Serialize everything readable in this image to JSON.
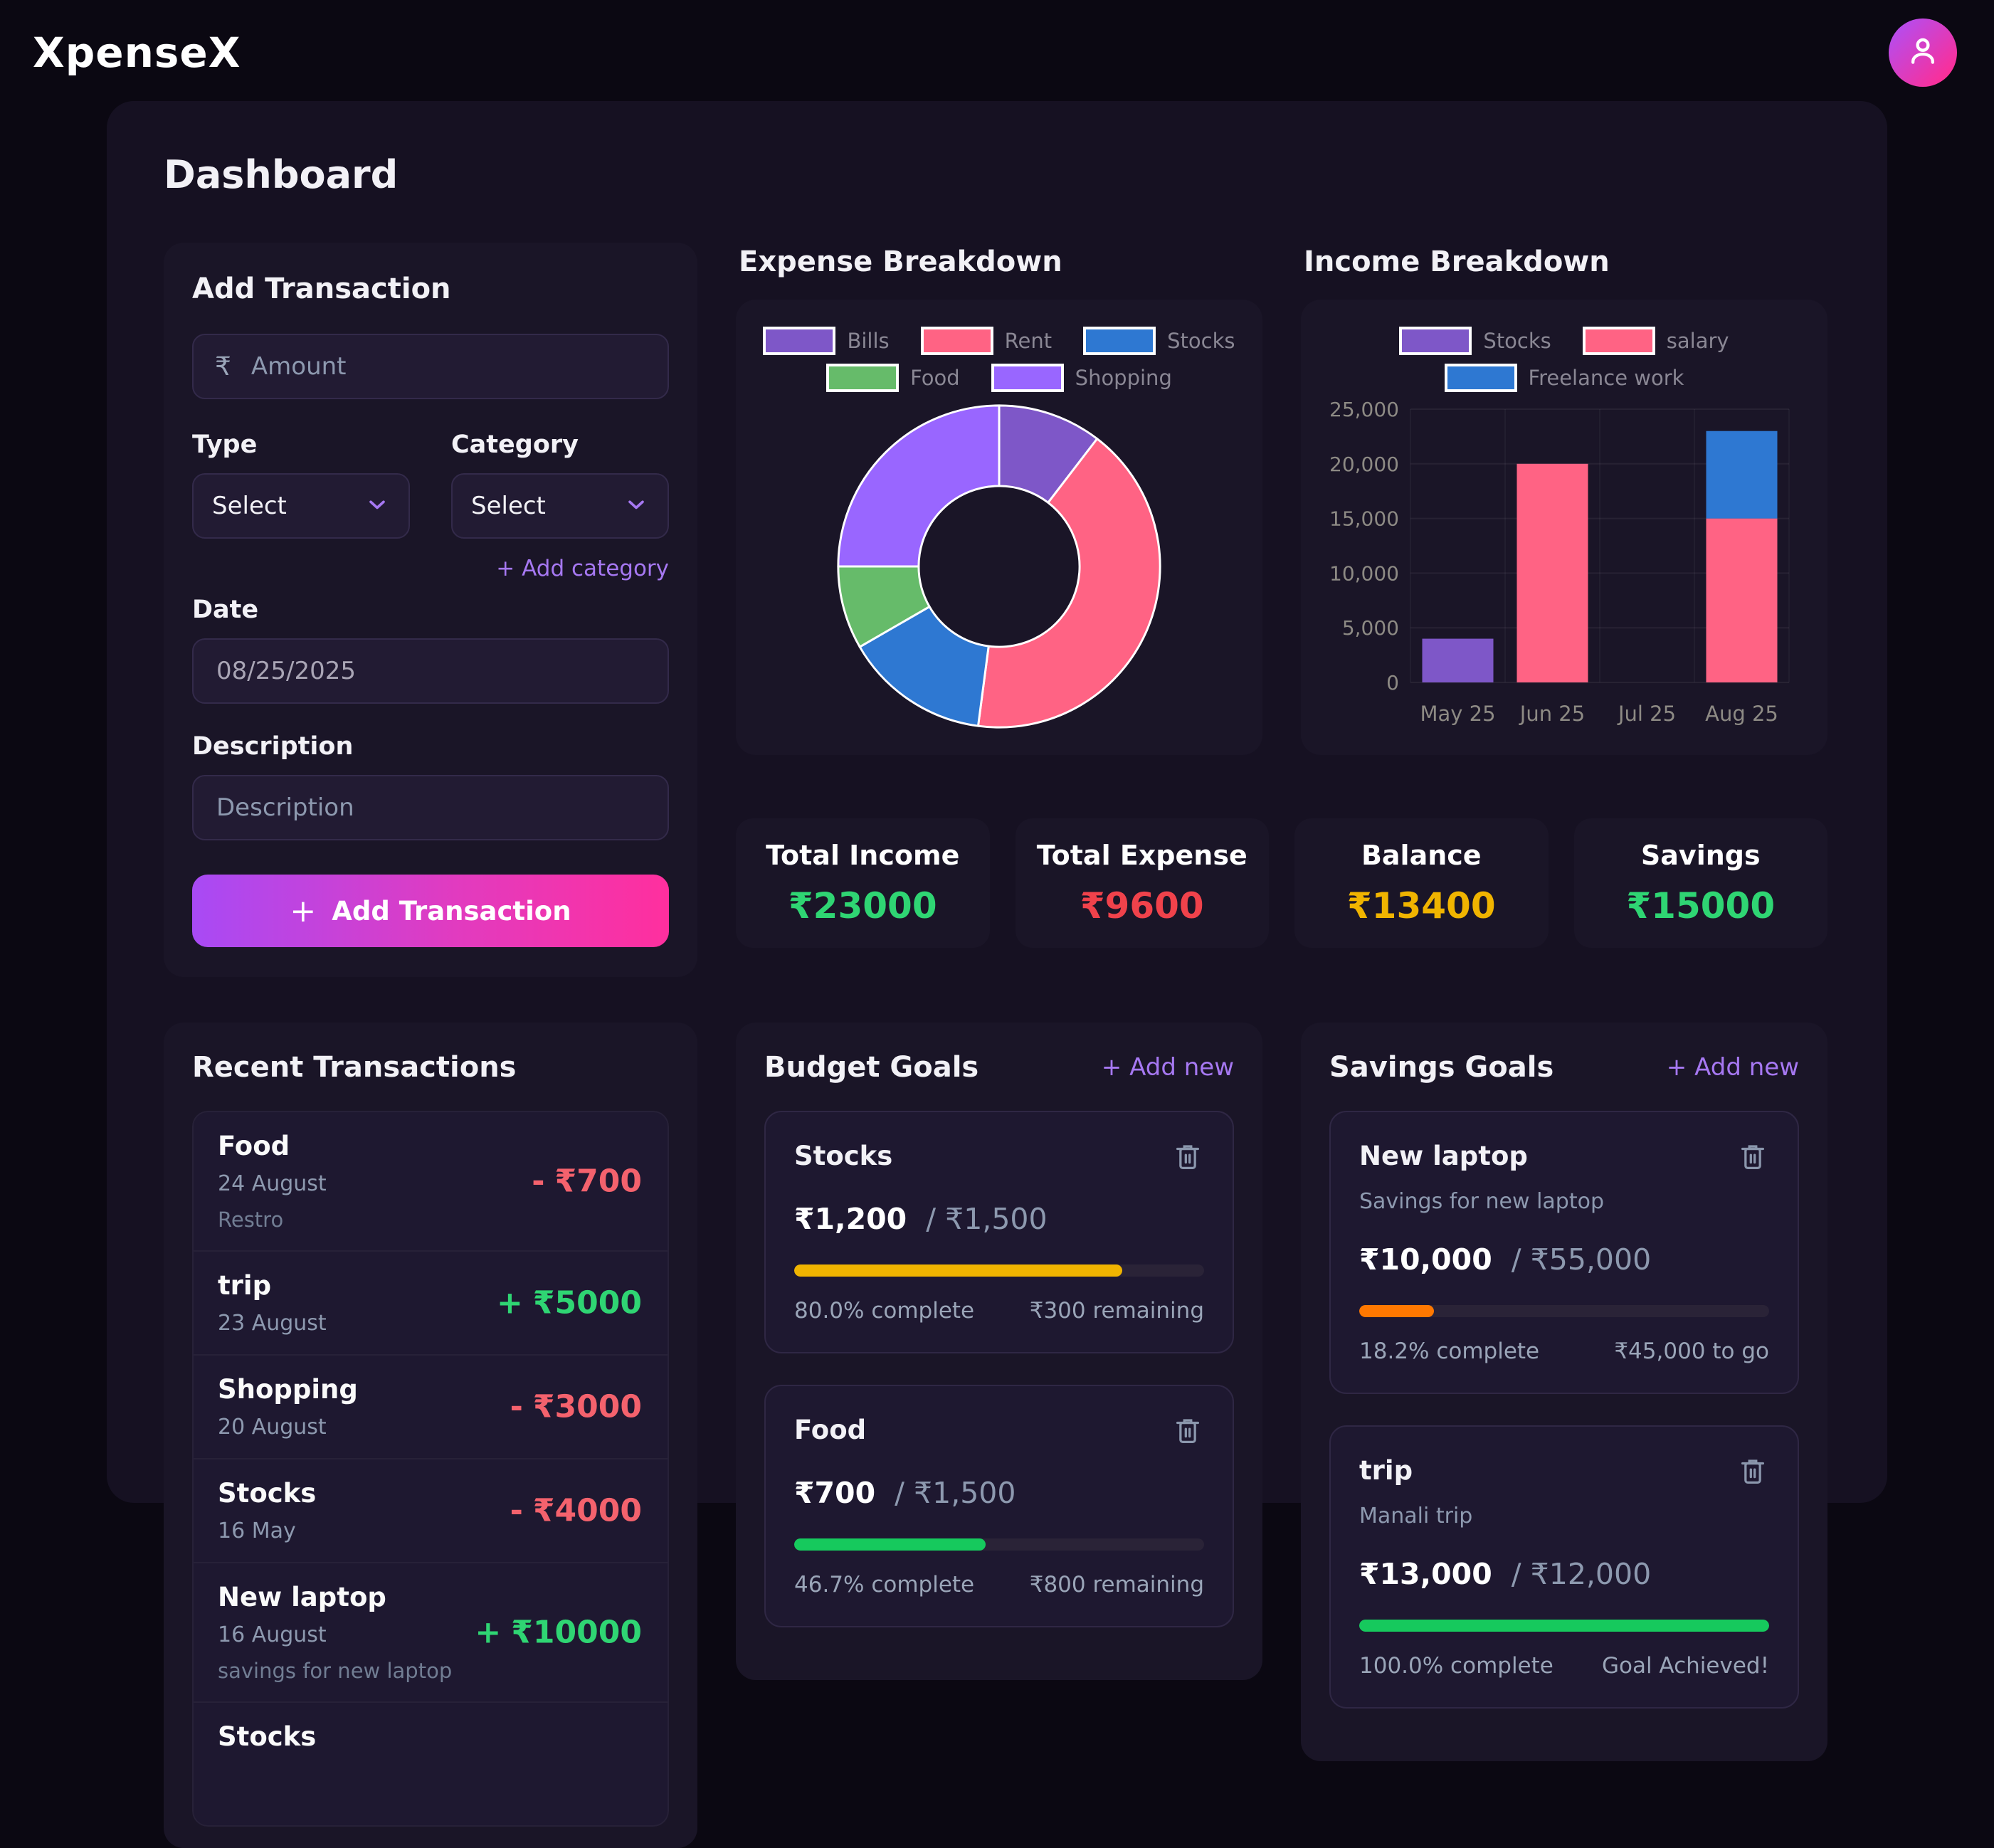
{
  "app": {
    "title": "XpenseX"
  },
  "page": {
    "title": "Dashboard"
  },
  "icons": {
    "add": "+"
  },
  "add_transaction": {
    "title": "Add Transaction",
    "currency_symbol": "₹",
    "amount_placeholder": "Amount",
    "type_label": "Type",
    "category_label": "Category",
    "type_value": "Select",
    "category_value": "Select",
    "add_category_label": "+ Add category",
    "date_label": "Date",
    "date_value": "08/25/2025",
    "description_label": "Description",
    "description_placeholder": "Description",
    "submit_label": "Add Transaction"
  },
  "summary_cards": [
    {
      "label": "Total Income",
      "value": "₹23000",
      "color": "#2fd573"
    },
    {
      "label": "Total Expense",
      "value": "₹9600",
      "color": "#f0424b"
    },
    {
      "label": "Balance",
      "value": "₹13400",
      "color": "#f0b400"
    },
    {
      "label": "Savings",
      "value": "₹15000",
      "color": "#2fd573"
    }
  ],
  "recent_transactions": {
    "title": "Recent Transactions",
    "items": [
      {
        "name": "Food",
        "date": "24 August",
        "note": "Restro",
        "sign": "-",
        "amount": "₹700",
        "color": "#f4626d"
      },
      {
        "name": "trip",
        "date": "23 August",
        "note": "",
        "sign": "+",
        "amount": "₹5000",
        "color": "#2fd573"
      },
      {
        "name": "Shopping",
        "date": "20 August",
        "note": "",
        "sign": "-",
        "amount": "₹3000",
        "color": "#f4626d"
      },
      {
        "name": "Stocks",
        "date": "16 May",
        "note": "",
        "sign": "-",
        "amount": "₹4000",
        "color": "#f4626d"
      },
      {
        "name": "New laptop",
        "date": "16 August",
        "note": "savings for new laptop",
        "sign": "+",
        "amount": "₹10000",
        "color": "#2fd573"
      },
      {
        "name": "Stocks",
        "date": "",
        "note": "",
        "sign": "",
        "amount": "",
        "color": ""
      }
    ]
  },
  "budget_goals": {
    "title": "Budget Goals",
    "add_new_label": "+ Add new",
    "items": [
      {
        "name": "Stocks",
        "current": "₹1,200",
        "target_label": "/ ₹1,500",
        "percent": 80.0,
        "percent_label": "80.0% complete",
        "status_label": "₹300 remaining",
        "bar_color": "#f0b400"
      },
      {
        "name": "Food",
        "current": "₹700",
        "target_label": "/ ₹1,500",
        "percent": 46.7,
        "percent_label": "46.7% complete",
        "status_label": "₹800 remaining",
        "bar_color": "#16c95d"
      }
    ]
  },
  "savings_goals": {
    "title": "Savings Goals",
    "add_new_label": "+ Add new",
    "items": [
      {
        "name": "New laptop",
        "subtitle": "Savings for new laptop",
        "current": "₹10,000",
        "target_label": "/ ₹55,000",
        "percent": 18.2,
        "percent_label": "18.2% complete",
        "status_label": "₹45,000 to go",
        "bar_color": "#ff7800"
      },
      {
        "name": "trip",
        "subtitle": "Manali trip",
        "current": "₹13,000",
        "target_label": "/ ₹12,000",
        "percent": 100.0,
        "percent_label": "100.0% complete",
        "status_label": "Goal Achieved!",
        "bar_color": "#16c95d"
      }
    ]
  },
  "chart_data": [
    {
      "id": "expense",
      "type": "pie",
      "title": "Expense Breakdown",
      "labels": [
        "Bills",
        "Rent",
        "Stocks",
        "Food",
        "Shopping"
      ],
      "values": [
        1000,
        4000,
        1400,
        800,
        2400
      ],
      "colors": [
        "#7e57c8",
        "#ff6384",
        "#2e78d2",
        "#66bb6a",
        "#9966ff"
      ],
      "legend_rows": [
        [
          0,
          1,
          2
        ],
        [
          3,
          4
        ]
      ],
      "cutout": 0.5,
      "slice_border_color": "#ffffff",
      "legend_position": "top"
    },
    {
      "id": "income",
      "type": "bar",
      "stacked": true,
      "title": "Income Breakdown",
      "categories": [
        "May 25",
        "Jun 25",
        "Jul 25",
        "Aug 25"
      ],
      "series": [
        {
          "name": "Stocks",
          "color": "#7e57c8",
          "values": [
            4000,
            0,
            0,
            0
          ]
        },
        {
          "name": "salary",
          "color": "#ff6384",
          "values": [
            0,
            20000,
            0,
            15000
          ]
        },
        {
          "name": "Freelance work",
          "color": "#2e78d2",
          "values": [
            0,
            0,
            0,
            8000
          ]
        }
      ],
      "ylim": [
        0,
        25000
      ],
      "ytick_step": 5000,
      "grid": true,
      "legend_rows": [
        [
          0,
          1
        ],
        [
          2
        ]
      ],
      "legend_position": "top"
    }
  ]
}
